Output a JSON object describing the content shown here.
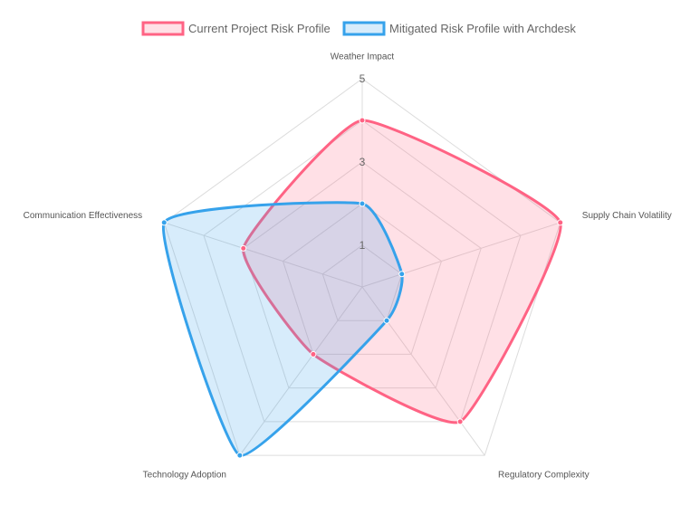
{
  "chart_data": {
    "type": "radar",
    "axes": [
      "Weather Impact",
      "Supply Chain Volatility",
      "Regulatory Complexity",
      "Technology Adoption",
      "Communication Effectiveness"
    ],
    "rlim": [
      0,
      5
    ],
    "ticks": [
      "1",
      "3",
      "5"
    ],
    "tick_values": [
      1,
      3,
      5
    ],
    "grid": true,
    "legend_position": "top",
    "series": [
      {
        "name": "Current Project Risk Profile",
        "values": [
          4,
          5,
          4,
          2,
          3
        ],
        "color": "#ff6384",
        "fill": "rgba(255, 99, 132, 0.2)"
      },
      {
        "name": "Mitigated Risk Profile with Archdesk",
        "values": [
          2,
          1,
          1,
          5,
          5
        ],
        "color": "#36a2eb",
        "fill": "rgba(54, 162, 235, 0.2)"
      }
    ]
  }
}
